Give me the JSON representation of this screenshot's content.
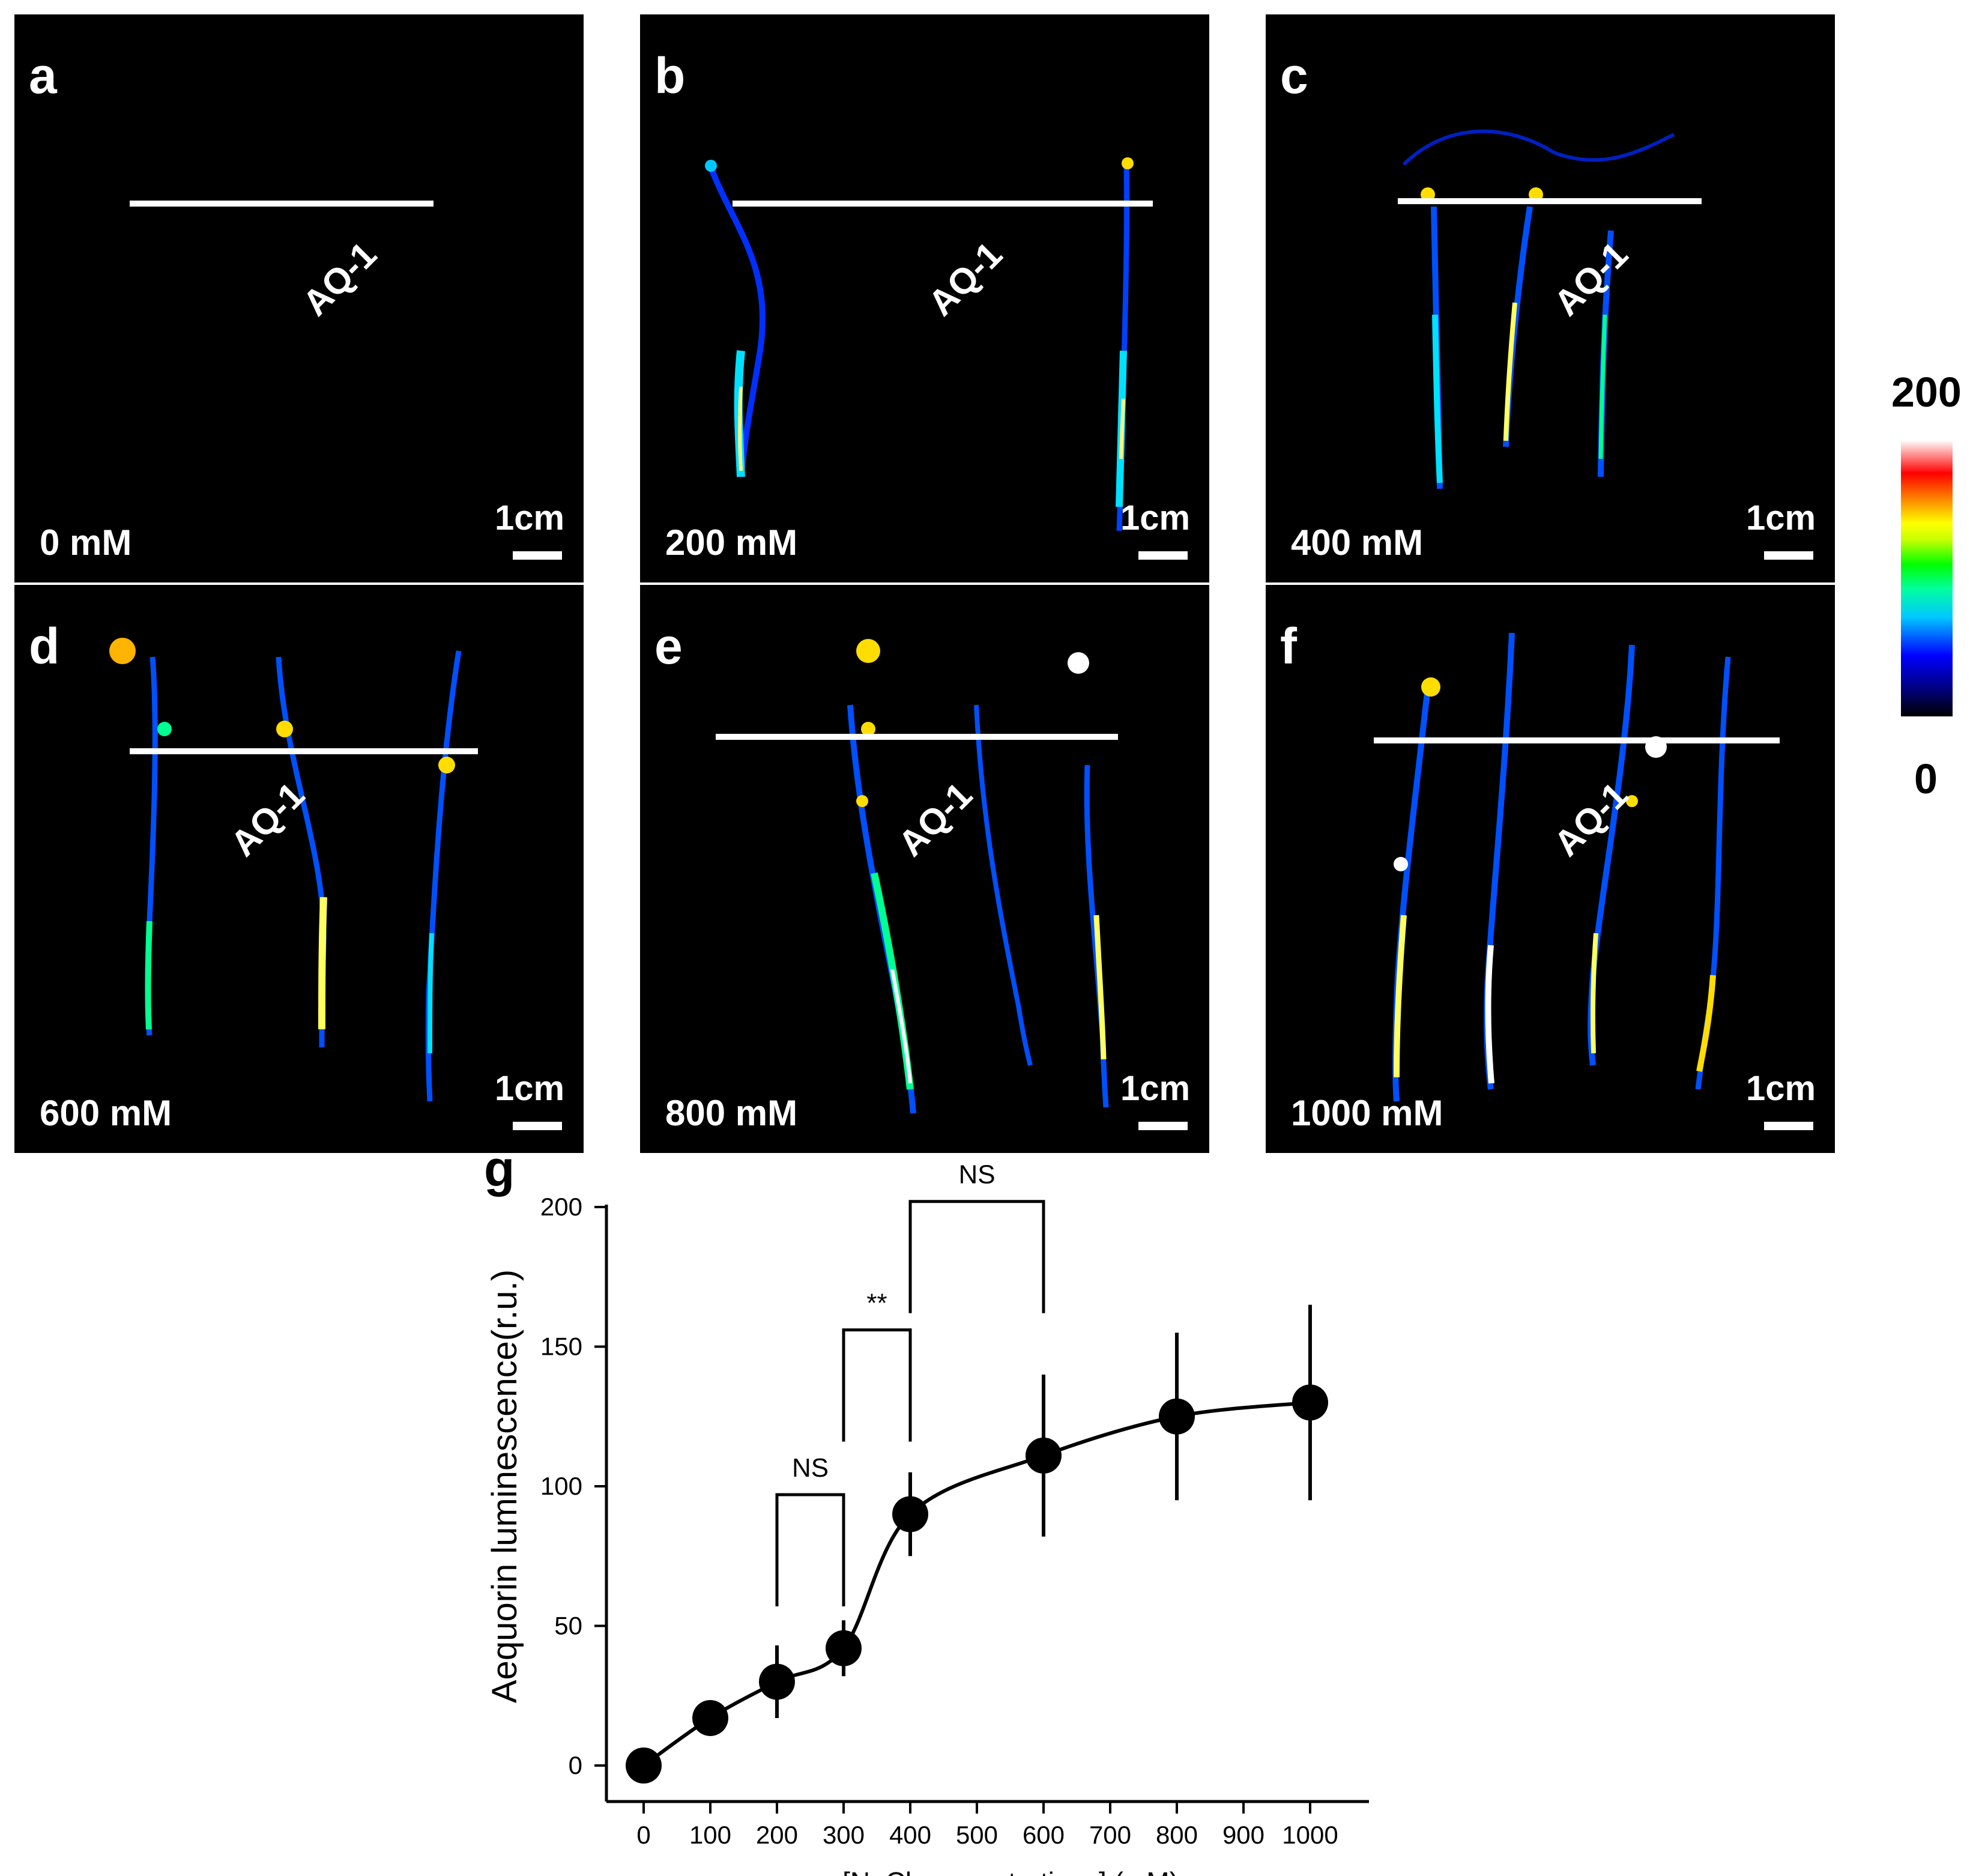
{
  "panels": [
    {
      "label": "a",
      "concentration": "0 mM",
      "aq_label": "AQ-1",
      "scale": "1cm"
    },
    {
      "label": "b",
      "concentration": "200 mM",
      "aq_label": "AQ-1",
      "scale": "1cm"
    },
    {
      "label": "c",
      "concentration": "400 mM",
      "aq_label": "AQ-1",
      "scale": "1cm"
    },
    {
      "label": "d",
      "concentration": "600 mM",
      "aq_label": "AQ-1",
      "scale": "1cm"
    },
    {
      "label": "e",
      "concentration": "800 mM",
      "aq_label": "AQ-1",
      "scale": "1cm"
    },
    {
      "label": "f",
      "concentration": "1000 mM",
      "aq_label": "AQ-1",
      "scale": "1cm"
    }
  ],
  "colorbar": {
    "max": "200",
    "min": "0"
  },
  "chart_label": "g",
  "chart_data": {
    "type": "line",
    "title": "",
    "xlabel": "[NaCl concentrations] (mM)",
    "ylabel": "Aequorin luminescence(r.u.)",
    "xlim": [
      0,
      1000
    ],
    "ylim": [
      0,
      200
    ],
    "x": [
      0,
      100,
      200,
      300,
      400,
      600,
      800,
      1000
    ],
    "series": [
      {
        "name": "Aequorin luminescence",
        "values": [
          0,
          17,
          30,
          42,
          90,
          111,
          125,
          130
        ],
        "errors": [
          0,
          0,
          13,
          10,
          15,
          29,
          30,
          35
        ]
      }
    ],
    "xticks": [
      0,
      100,
      200,
      300,
      400,
      500,
      600,
      700,
      800,
      900,
      1000
    ],
    "yticks": [
      0,
      50,
      100,
      150,
      200
    ],
    "annotations": [
      {
        "from": 200,
        "to": 300,
        "level": 97,
        "text": "NS"
      },
      {
        "from": 300,
        "to": 400,
        "level": 156,
        "text": "**"
      },
      {
        "from": 400,
        "to": 600,
        "level": 202,
        "text": "NS"
      }
    ]
  }
}
